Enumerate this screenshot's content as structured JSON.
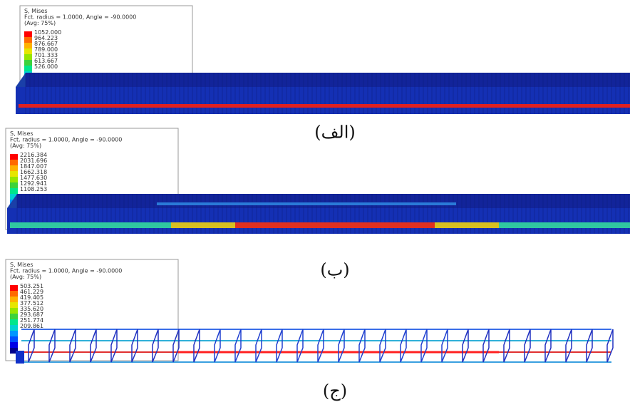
{
  "panels": [
    {
      "legend": {
        "title": "S, Mises",
        "subtitle": "Fct. radius = 1.0000, Angle = -90.0000",
        "average": "(Avg: 75%)",
        "values": [
          "1052.000",
          "964.223",
          "876.667",
          "789.000",
          "701.333",
          "613.667",
          "526.000"
        ]
      },
      "caption": "(الف)"
    },
    {
      "legend": {
        "title": "S, Mises",
        "subtitle": "Fct. radius = 1.0000, Angle = -90.0000",
        "average": "(Avg: 75%)",
        "values": [
          "2216.384",
          "2031.696",
          "1847.007",
          "1662.318",
          "1477.630",
          "1292.941",
          "1108.253"
        ]
      },
      "caption": "(ب)"
    },
    {
      "legend": {
        "title": "S, Mises",
        "subtitle": "Fct. radius = 1.0000, Angle = -90.0000",
        "average": "(Avg: 75%)",
        "values": [
          "503.251",
          "461.229",
          "419.405",
          "377.512",
          "335.620",
          "293.687",
          "251.774",
          "209.861"
        ]
      },
      "caption": "(ج)"
    }
  ]
}
